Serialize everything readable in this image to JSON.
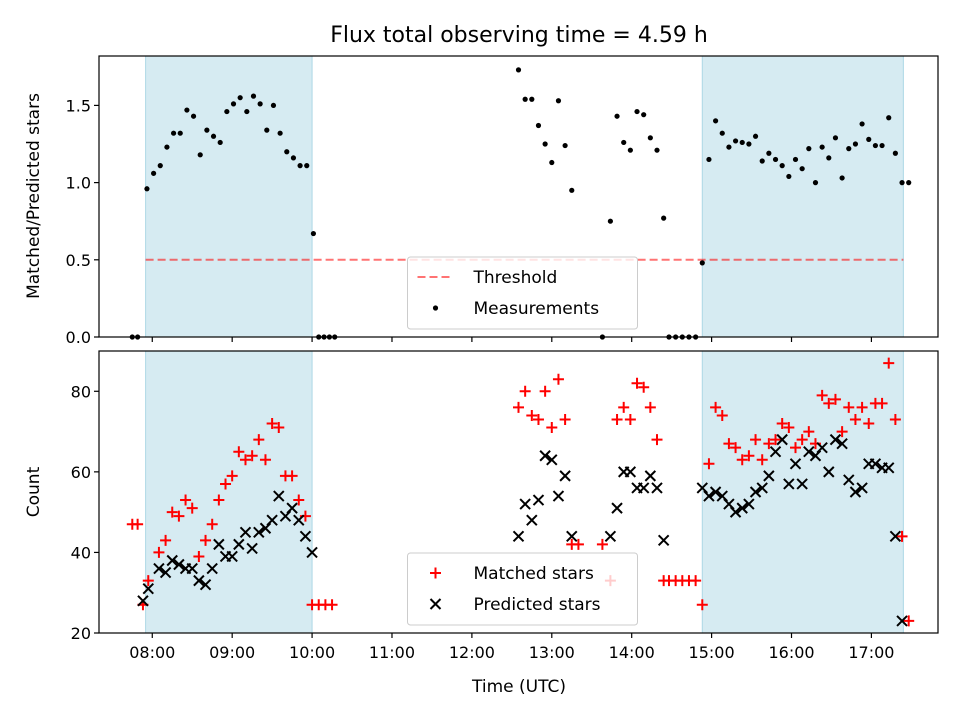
{
  "title": "Flux total observing time = 4.59 h",
  "xlabel": "Time (UTC)",
  "x_ticks": [
    "08:00",
    "09:00",
    "10:00",
    "11:00",
    "12:00",
    "13:00",
    "14:00",
    "15:00",
    "16:00",
    "17:00"
  ],
  "colors": {
    "shade": "#add8e6",
    "threshold": "#ff0000",
    "matched": "#ff0000",
    "predicted": "#000000",
    "measurements": "#000000"
  },
  "chart_data": [
    {
      "type": "scatter",
      "ylabel": "Matched/Predicted stars",
      "xlim": [
        "07:20",
        "17:50"
      ],
      "ylim": [
        0,
        1.82
      ],
      "y_ticks": [
        "0.0",
        "0.5",
        "1.0",
        "1.5"
      ],
      "shaded_intervals": [
        [
          "07:55",
          "10:00"
        ],
        [
          "14:53",
          "17:24"
        ]
      ],
      "threshold": {
        "name": "Threshold",
        "value": 0.5,
        "x_range": [
          "07:55",
          "17:24"
        ]
      },
      "legend": {
        "placement": "lower center",
        "entries": [
          "Threshold",
          "Measurements"
        ]
      },
      "series": [
        {
          "name": "Measurements",
          "marker": "dot",
          "points": [
            [
              "07:45",
              0.0
            ],
            [
              "07:49",
              0.0
            ],
            [
              "07:56",
              0.96
            ],
            [
              "08:01",
              1.06
            ],
            [
              "08:06",
              1.11
            ],
            [
              "08:11",
              1.23
            ],
            [
              "08:16",
              1.32
            ],
            [
              "08:21",
              1.32
            ],
            [
              "08:26",
              1.47
            ],
            [
              "08:31",
              1.43
            ],
            [
              "08:36",
              1.18
            ],
            [
              "08:41",
              1.34
            ],
            [
              "08:46",
              1.3
            ],
            [
              "08:51",
              1.26
            ],
            [
              "08:56",
              1.46
            ],
            [
              "09:01",
              1.51
            ],
            [
              "09:06",
              1.55
            ],
            [
              "09:11",
              1.46
            ],
            [
              "09:16",
              1.56
            ],
            [
              "09:21",
              1.51
            ],
            [
              "09:26",
              1.34
            ],
            [
              "09:31",
              1.5
            ],
            [
              "09:36",
              1.32
            ],
            [
              "09:41",
              1.2
            ],
            [
              "09:46",
              1.16
            ],
            [
              "09:51",
              1.11
            ],
            [
              "09:56",
              1.11
            ],
            [
              "10:01",
              0.67
            ],
            [
              "10:05",
              0.0
            ],
            [
              "10:09",
              0.0
            ],
            [
              "10:13",
              0.0
            ],
            [
              "10:17",
              0.0
            ],
            [
              "12:35",
              1.73
            ],
            [
              "12:40",
              1.54
            ],
            [
              "12:45",
              1.54
            ],
            [
              "12:50",
              1.37
            ],
            [
              "12:55",
              1.25
            ],
            [
              "13:00",
              1.13
            ],
            [
              "13:05",
              1.53
            ],
            [
              "13:10",
              1.24
            ],
            [
              "13:15",
              0.95
            ],
            [
              "13:38",
              0.0
            ],
            [
              "13:44",
              0.75
            ],
            [
              "13:49",
              1.43
            ],
            [
              "13:54",
              1.26
            ],
            [
              "13:59",
              1.21
            ],
            [
              "14:04",
              1.46
            ],
            [
              "14:09",
              1.44
            ],
            [
              "14:14",
              1.29
            ],
            [
              "14:19",
              1.21
            ],
            [
              "14:24",
              0.77
            ],
            [
              "14:28",
              0.0
            ],
            [
              "14:33",
              0.0
            ],
            [
              "14:38",
              0.0
            ],
            [
              "14:43",
              0.0
            ],
            [
              "14:48",
              0.0
            ],
            [
              "14:53",
              0.48
            ],
            [
              "14:58",
              1.15
            ],
            [
              "15:03",
              1.4
            ],
            [
              "15:08",
              1.32
            ],
            [
              "15:13",
              1.23
            ],
            [
              "15:18",
              1.27
            ],
            [
              "15:23",
              1.26
            ],
            [
              "15:28",
              1.25
            ],
            [
              "15:33",
              1.3
            ],
            [
              "15:38",
              1.14
            ],
            [
              "15:43",
              1.19
            ],
            [
              "15:48",
              1.15
            ],
            [
              "15:53",
              1.11
            ],
            [
              "15:58",
              1.04
            ],
            [
              "16:03",
              1.15
            ],
            [
              "16:08",
              1.09
            ],
            [
              "16:13",
              1.22
            ],
            [
              "16:18",
              1.0
            ],
            [
              "16:23",
              1.23
            ],
            [
              "16:28",
              1.16
            ],
            [
              "16:33",
              1.29
            ],
            [
              "16:38",
              1.03
            ],
            [
              "16:43",
              1.22
            ],
            [
              "16:48",
              1.25
            ],
            [
              "16:53",
              1.38
            ],
            [
              "16:58",
              1.28
            ],
            [
              "17:03",
              1.24
            ],
            [
              "17:08",
              1.24
            ],
            [
              "17:13",
              1.42
            ],
            [
              "17:18",
              1.19
            ],
            [
              "17:23",
              1.0
            ],
            [
              "17:28",
              1.0
            ]
          ]
        }
      ]
    },
    {
      "type": "scatter",
      "ylabel": "Count",
      "xlim": [
        "07:20",
        "17:50"
      ],
      "ylim": [
        20,
        90
      ],
      "y_ticks": [
        "20",
        "40",
        "60",
        "80"
      ],
      "shaded_intervals": [
        [
          "07:55",
          "10:00"
        ],
        [
          "14:53",
          "17:24"
        ]
      ],
      "legend": {
        "placement": "lower center",
        "entries": [
          "Matched stars",
          "Predicted stars"
        ]
      },
      "series": [
        {
          "name": "Matched stars",
          "marker": "plus",
          "points": [
            [
              "07:45",
              47
            ],
            [
              "07:49",
              47
            ],
            [
              "07:53",
              27
            ],
            [
              "07:57",
              33
            ],
            [
              "08:05",
              40
            ],
            [
              "08:10",
              43
            ],
            [
              "08:15",
              50
            ],
            [
              "08:20",
              49
            ],
            [
              "08:25",
              53
            ],
            [
              "08:30",
              51
            ],
            [
              "08:35",
              39
            ],
            [
              "08:40",
              43
            ],
            [
              "08:45",
              47
            ],
            [
              "08:50",
              53
            ],
            [
              "08:55",
              57
            ],
            [
              "09:00",
              59
            ],
            [
              "09:05",
              65
            ],
            [
              "09:10",
              63
            ],
            [
              "09:15",
              64
            ],
            [
              "09:20",
              68
            ],
            [
              "09:25",
              63
            ],
            [
              "09:30",
              72
            ],
            [
              "09:35",
              71
            ],
            [
              "09:40",
              59
            ],
            [
              "09:45",
              59
            ],
            [
              "09:50",
              53
            ],
            [
              "09:55",
              49
            ],
            [
              "10:00",
              27
            ],
            [
              "10:05",
              27
            ],
            [
              "10:10",
              27
            ],
            [
              "10:15",
              27
            ],
            [
              "12:35",
              76
            ],
            [
              "12:40",
              80
            ],
            [
              "12:45",
              74
            ],
            [
              "12:50",
              73
            ],
            [
              "12:55",
              80
            ],
            [
              "13:00",
              71
            ],
            [
              "13:05",
              83
            ],
            [
              "13:10",
              73
            ],
            [
              "13:15",
              42
            ],
            [
              "13:20",
              42
            ],
            [
              "13:38",
              42
            ],
            [
              "13:44",
              33
            ],
            [
              "13:49",
              73
            ],
            [
              "13:54",
              76
            ],
            [
              "13:59",
              73
            ],
            [
              "14:04",
              82
            ],
            [
              "14:09",
              81
            ],
            [
              "14:14",
              76
            ],
            [
              "14:19",
              68
            ],
            [
              "14:24",
              33
            ],
            [
              "14:28",
              33
            ],
            [
              "14:33",
              33
            ],
            [
              "14:38",
              33
            ],
            [
              "14:43",
              33
            ],
            [
              "14:48",
              33
            ],
            [
              "14:53",
              27
            ],
            [
              "14:58",
              62
            ],
            [
              "15:03",
              76
            ],
            [
              "15:08",
              74
            ],
            [
              "15:13",
              67
            ],
            [
              "15:18",
              66
            ],
            [
              "15:23",
              63
            ],
            [
              "15:28",
              64
            ],
            [
              "15:33",
              68
            ],
            [
              "15:38",
              63
            ],
            [
              "15:43",
              67
            ],
            [
              "15:48",
              68
            ],
            [
              "15:53",
              72
            ],
            [
              "15:58",
              71
            ],
            [
              "16:03",
              66
            ],
            [
              "16:08",
              68
            ],
            [
              "16:13",
              70
            ],
            [
              "16:18",
              67
            ],
            [
              "16:23",
              79
            ],
            [
              "16:28",
              77
            ],
            [
              "16:33",
              78
            ],
            [
              "16:38",
              70
            ],
            [
              "16:43",
              76
            ],
            [
              "16:48",
              73
            ],
            [
              "16:53",
              76
            ],
            [
              "16:58",
              72
            ],
            [
              "17:03",
              77
            ],
            [
              "17:08",
              77
            ],
            [
              "17:13",
              87
            ],
            [
              "17:18",
              73
            ],
            [
              "17:23",
              44
            ],
            [
              "17:28",
              23
            ]
          ]
        },
        {
          "name": "Predicted stars",
          "marker": "x",
          "points": [
            [
              "07:53",
              28
            ],
            [
              "07:57",
              31
            ],
            [
              "08:05",
              36
            ],
            [
              "08:10",
              35
            ],
            [
              "08:15",
              38
            ],
            [
              "08:20",
              37
            ],
            [
              "08:25",
              36
            ],
            [
              "08:30",
              36
            ],
            [
              "08:35",
              33
            ],
            [
              "08:40",
              32
            ],
            [
              "08:45",
              36
            ],
            [
              "08:50",
              42
            ],
            [
              "08:55",
              39
            ],
            [
              "09:00",
              39
            ],
            [
              "09:05",
              42
            ],
            [
              "09:10",
              45
            ],
            [
              "09:15",
              41
            ],
            [
              "09:20",
              45
            ],
            [
              "09:25",
              46
            ],
            [
              "09:30",
              48
            ],
            [
              "09:35",
              54
            ],
            [
              "09:40",
              49
            ],
            [
              "09:45",
              51
            ],
            [
              "09:50",
              48
            ],
            [
              "09:55",
              44
            ],
            [
              "10:00",
              40
            ],
            [
              "12:35",
              44
            ],
            [
              "12:40",
              52
            ],
            [
              "12:45",
              48
            ],
            [
              "12:50",
              53
            ],
            [
              "12:55",
              64
            ],
            [
              "13:00",
              63
            ],
            [
              "13:05",
              54
            ],
            [
              "13:10",
              59
            ],
            [
              "13:15",
              44
            ],
            [
              "13:44",
              44
            ],
            [
              "13:49",
              51
            ],
            [
              "13:54",
              60
            ],
            [
              "13:59",
              60
            ],
            [
              "14:04",
              56
            ],
            [
              "14:09",
              56
            ],
            [
              "14:14",
              59
            ],
            [
              "14:19",
              56
            ],
            [
              "14:24",
              43
            ],
            [
              "14:53",
              56
            ],
            [
              "14:58",
              54
            ],
            [
              "15:03",
              55
            ],
            [
              "15:08",
              54
            ],
            [
              "15:13",
              52
            ],
            [
              "15:18",
              50
            ],
            [
              "15:23",
              51
            ],
            [
              "15:28",
              52
            ],
            [
              "15:33",
              55
            ],
            [
              "15:38",
              56
            ],
            [
              "15:43",
              59
            ],
            [
              "15:48",
              65
            ],
            [
              "15:53",
              68
            ],
            [
              "15:58",
              57
            ],
            [
              "16:03",
              62
            ],
            [
              "16:08",
              57
            ],
            [
              "16:13",
              65
            ],
            [
              "16:18",
              64
            ],
            [
              "16:23",
              66
            ],
            [
              "16:28",
              60
            ],
            [
              "16:33",
              68
            ],
            [
              "16:38",
              67
            ],
            [
              "16:43",
              58
            ],
            [
              "16:48",
              55
            ],
            [
              "16:53",
              56
            ],
            [
              "16:58",
              62
            ],
            [
              "17:03",
              62
            ],
            [
              "17:08",
              61
            ],
            [
              "17:13",
              61
            ],
            [
              "17:18",
              44
            ],
            [
              "17:23",
              23
            ]
          ]
        }
      ]
    }
  ]
}
